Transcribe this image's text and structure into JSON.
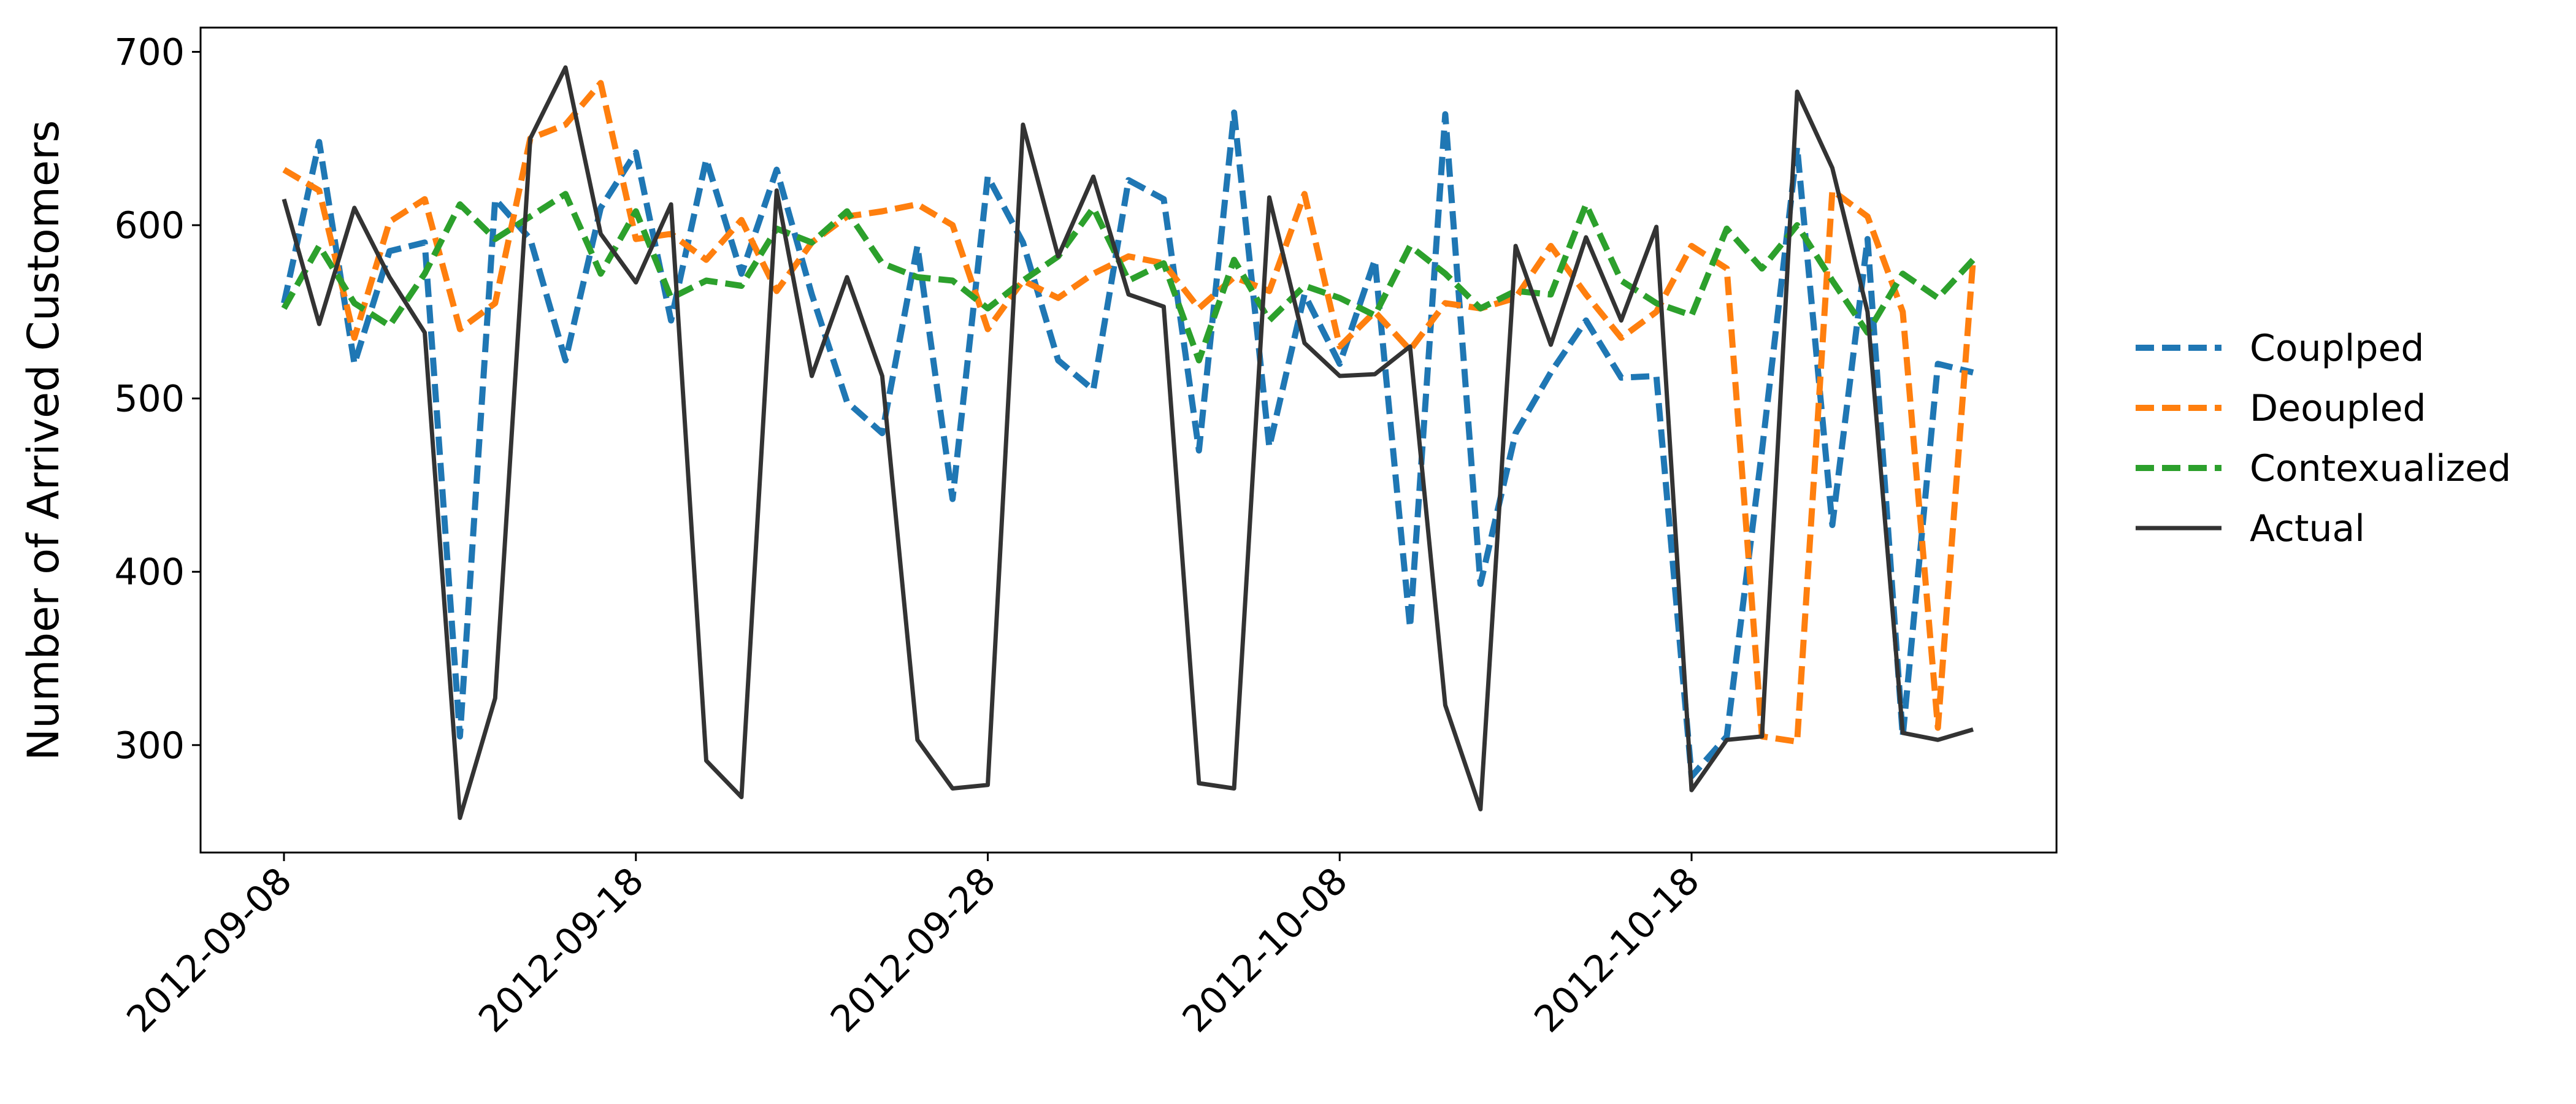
{
  "chart_data": {
    "type": "line",
    "title": "",
    "xlabel": "",
    "ylabel": "Number of Arrived Customers",
    "x": [
      "2012-09-08",
      "2012-09-09",
      "2012-09-10",
      "2012-09-11",
      "2012-09-12",
      "2012-09-13",
      "2012-09-14",
      "2012-09-15",
      "2012-09-16",
      "2012-09-17",
      "2012-09-18",
      "2012-09-19",
      "2012-09-20",
      "2012-09-21",
      "2012-09-22",
      "2012-09-23",
      "2012-09-24",
      "2012-09-25",
      "2012-09-26",
      "2012-09-27",
      "2012-09-28",
      "2012-09-29",
      "2012-09-30",
      "2012-10-01",
      "2012-10-02",
      "2012-10-03",
      "2012-10-04",
      "2012-10-05",
      "2012-10-06",
      "2012-10-07",
      "2012-10-08",
      "2012-10-09",
      "2012-10-10",
      "2012-10-11",
      "2012-10-12",
      "2012-10-13",
      "2012-10-14",
      "2012-10-15",
      "2012-10-16",
      "2012-10-17",
      "2012-10-18",
      "2012-10-19",
      "2012-10-20",
      "2012-10-21",
      "2012-10-22",
      "2012-10-23",
      "2012-10-24",
      "2012-10-25",
      "2012-10-26"
    ],
    "xticks": [
      "2012-09-08",
      "2012-09-18",
      "2012-09-28",
      "2012-10-08",
      "2012-10-18"
    ],
    "yticks": [
      300,
      400,
      500,
      600,
      700
    ],
    "ylim": [
      238,
      714
    ],
    "grid": false,
    "legend_position": "right, outside",
    "series": [
      {
        "name": "Couplped",
        "color": "#1f77b4",
        "style": "dashed",
        "values": [
          555,
          648,
          520,
          585,
          590,
          305,
          615,
          592,
          522,
          610,
          642,
          545,
          638,
          572,
          632,
          560,
          498,
          480,
          588,
          442,
          628,
          590,
          522,
          505,
          626,
          615,
          470,
          665,
          472,
          560,
          520,
          580,
          368,
          664,
          393,
          480,
          515,
          545,
          512,
          513,
          282,
          305,
          470,
          645,
          427,
          592,
          305,
          520,
          515
        ]
      },
      {
        "name": "Deoupled",
        "color": "#ff7f0e",
        "style": "dashed",
        "values": [
          632,
          620,
          535,
          602,
          615,
          540,
          555,
          650,
          658,
          682,
          592,
          595,
          580,
          603,
          562,
          590,
          605,
          608,
          612,
          600,
          540,
          568,
          558,
          572,
          582,
          578,
          552,
          570,
          562,
          618,
          530,
          550,
          528,
          555,
          552,
          558,
          588,
          560,
          535,
          550,
          588,
          575,
          305,
          302,
          620,
          605,
          550,
          310,
          580
        ]
      },
      {
        "name": "Contexualized",
        "color": "#2ca02c",
        "style": "dashed",
        "values": [
          552,
          588,
          555,
          542,
          572,
          612,
          592,
          605,
          618,
          572,
          608,
          558,
          568,
          565,
          598,
          590,
          608,
          578,
          570,
          568,
          552,
          568,
          582,
          610,
          568,
          578,
          522,
          580,
          545,
          565,
          558,
          548,
          588,
          572,
          552,
          562,
          560,
          612,
          568,
          555,
          548,
          598,
          575,
          600,
          568,
          538,
          572,
          558,
          580
        ]
      },
      {
        "name": "Actual",
        "color": "#333333",
        "style": "solid",
        "values": [
          615,
          543,
          610,
          570,
          538,
          258,
          327,
          650,
          691,
          595,
          567,
          612,
          291,
          270,
          620,
          513,
          570,
          513,
          303,
          275,
          277,
          658,
          582,
          628,
          560,
          553,
          278,
          275,
          616,
          532,
          513,
          514,
          530,
          323,
          263,
          588,
          531,
          593,
          545,
          599,
          274,
          303,
          305,
          677,
          633,
          550,
          307,
          303,
          309
        ]
      }
    ]
  }
}
